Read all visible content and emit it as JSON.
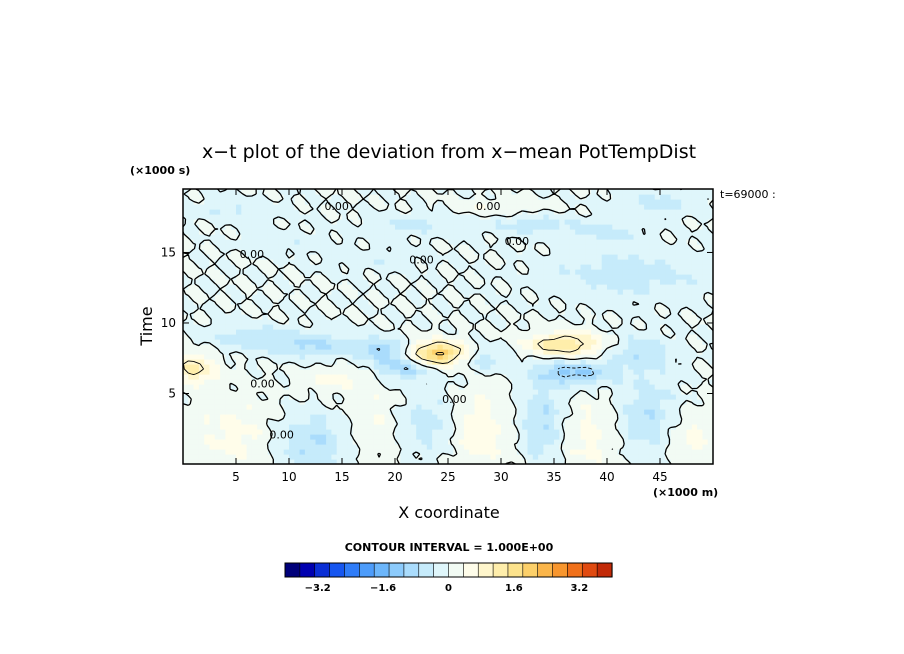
{
  "chart_data": {
    "type": "heatmap",
    "title": "x−t plot of the deviation from x−mean PotTempDist",
    "xlabel": "X coordinate",
    "ylabel": "Time",
    "x_unit": "(×1000 m)",
    "y_unit": "(×1000 s)",
    "time_stamp": "t=69000 :",
    "xlim": [
      0,
      50
    ],
    "ylim": [
      0,
      19.5
    ],
    "x_ticks": [
      5,
      10,
      15,
      20,
      25,
      30,
      35,
      40,
      45
    ],
    "x_tick_labels": [
      "5",
      "10",
      "15",
      "20",
      "25",
      "30",
      "35",
      "40",
      "45"
    ],
    "y_ticks": [
      5,
      10,
      15
    ],
    "y_tick_labels": [
      "5",
      "10",
      "15"
    ],
    "grid": false,
    "contour_interval_text": "CONTOUR INTERVAL = 1.000E+00",
    "contour_labels": [
      {
        "text": "0.00",
        "x": 14.5,
        "y": 18.3
      },
      {
        "text": "0.00",
        "x": 28.8,
        "y": 18.3
      },
      {
        "text": "0.00",
        "x": 31.5,
        "y": 15.8
      },
      {
        "text": "0.00",
        "x": 6.5,
        "y": 14.9
      },
      {
        "text": "0.00",
        "x": 22.5,
        "y": 14.5
      },
      {
        "text": "0.00",
        "x": 7.5,
        "y": 5.7
      },
      {
        "text": "0.00",
        "x": 9.3,
        "y": 2.1
      },
      {
        "text": "0.00",
        "x": 25.6,
        "y": 4.6
      }
    ],
    "colorbar": {
      "vmin": -4.0,
      "vmax": 4.0,
      "step": 0.4,
      "tick_values": [
        -3.2,
        -1.6,
        0,
        1.6,
        3.2
      ],
      "tick_labels": [
        "−3.2",
        "−1.6",
        "0",
        "1.6",
        "3.2"
      ],
      "colors": [
        "#00007a",
        "#0000b0",
        "#0b2fd6",
        "#1656f0",
        "#2f7cf8",
        "#4d9cfa",
        "#6cb6fb",
        "#8ccbfc",
        "#aadcfc",
        "#c6ebfb",
        "#dff6fb",
        "#f2fbf4",
        "#fffdea",
        "#fff6cc",
        "#ffeeab",
        "#fde38c",
        "#fcd06a",
        "#fab54a",
        "#f7962e",
        "#f0701a",
        "#e04a10",
        "#c22a08"
      ]
    },
    "features": [
      {
        "x": 5,
        "t": 2.0,
        "value": 0.5,
        "sx": 3.0,
        "st": 2.0
      },
      {
        "x": 12,
        "t": 1.5,
        "value": -0.8,
        "sx": 2.5,
        "st": 1.5
      },
      {
        "x": 18,
        "t": 3.0,
        "value": 0.4,
        "sx": 2.0,
        "st": 2.0
      },
      {
        "x": 23,
        "t": 3.0,
        "value": -0.6,
        "sx": 2.0,
        "st": 1.5
      },
      {
        "x": 28,
        "t": 2.5,
        "value": 0.6,
        "sx": 2.0,
        "st": 2.0
      },
      {
        "x": 34,
        "t": 3.0,
        "value": -0.8,
        "sx": 1.5,
        "st": 2.0
      },
      {
        "x": 38,
        "t": 2.0,
        "value": 0.5,
        "sx": 2.0,
        "st": 2.0
      },
      {
        "x": 44,
        "t": 3.5,
        "value": -0.7,
        "sx": 2.0,
        "st": 2.0
      },
      {
        "x": 48,
        "t": 2.0,
        "value": 0.5,
        "sx": 2.0,
        "st": 1.5
      },
      {
        "x": 1,
        "t": 6.8,
        "value": 1.2,
        "sx": 1.5,
        "st": 0.7
      },
      {
        "x": 24,
        "t": 7.8,
        "value": 2.4,
        "sx": 2.2,
        "st": 0.6
      },
      {
        "x": 21,
        "t": 7.0,
        "value": -1.2,
        "sx": 2.0,
        "st": 0.6
      },
      {
        "x": 19,
        "t": 8.2,
        "value": -1.0,
        "sx": 2.0,
        "st": 0.5
      },
      {
        "x": 36,
        "t": 8.5,
        "value": 1.5,
        "sx": 2.5,
        "st": 0.6
      },
      {
        "x": 37,
        "t": 6.5,
        "value": -1.2,
        "sx": 2.5,
        "st": 0.6
      },
      {
        "x": 28,
        "t": 7.5,
        "value": -0.8,
        "sx": 2.0,
        "st": 0.6
      },
      {
        "x": 12,
        "t": 8.5,
        "value": -0.8,
        "sx": 3.0,
        "st": 0.6
      },
      {
        "x": 6,
        "t": 9.0,
        "value": -0.6,
        "sx": 2.5,
        "st": 0.6
      },
      {
        "x": 43,
        "t": 8.0,
        "value": -0.7,
        "sx": 2.0,
        "st": 0.8
      },
      {
        "x": 14,
        "t": 6.0,
        "value": 0.5,
        "sx": 2.0,
        "st": 0.6
      },
      {
        "x": 42,
        "t": 13.5,
        "value": -0.6,
        "sx": 5.0,
        "st": 1.2
      },
      {
        "x": 18,
        "t": 14.5,
        "value": -0.3,
        "sx": 3.0,
        "st": 0.5
      },
      {
        "x": 10,
        "t": 15.8,
        "value": -0.3,
        "sx": 3.0,
        "st": 0.5
      },
      {
        "x": 45,
        "t": 18.5,
        "value": -0.5,
        "sx": 3.0,
        "st": 0.6
      },
      {
        "x": 22,
        "t": 17.0,
        "value": -0.5,
        "sx": 3.0,
        "st": 0.5
      },
      {
        "x": 33,
        "t": 17.0,
        "value": -0.6,
        "sx": 3.0,
        "st": 0.5
      },
      {
        "x": 40,
        "t": 16.5,
        "value": -0.5,
        "sx": 2.0,
        "st": 0.5
      },
      {
        "x": 30,
        "t": 18.2,
        "value": 0.4,
        "sx": 3.0,
        "st": 0.4
      },
      {
        "x": 5,
        "t": 18.0,
        "value": -0.4,
        "sx": 3.0,
        "st": 0.5
      }
    ]
  }
}
